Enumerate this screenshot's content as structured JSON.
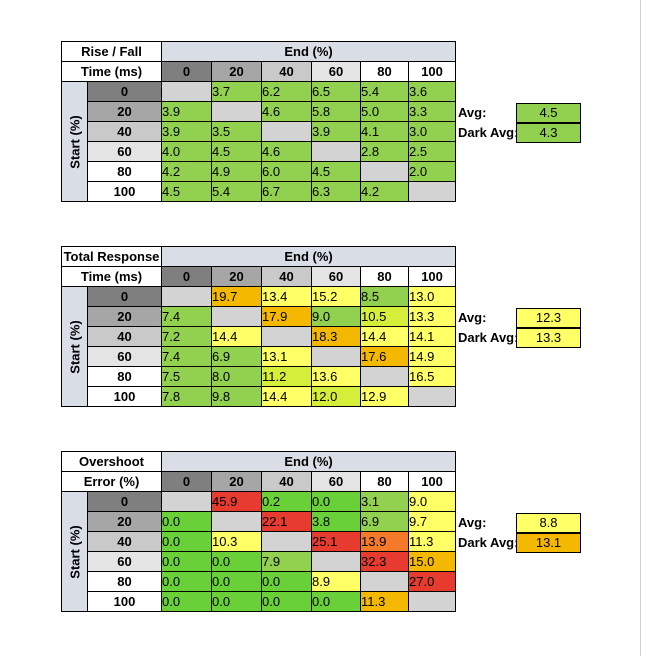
{
  "colors": {
    "green": "#6ad037",
    "lightgreen": "#92d050",
    "yellow": "#ffff66",
    "yellowgreen": "#d4ee3a",
    "orange": "#f5b800",
    "deeporange": "#f47a2a",
    "red": "#e63b2e",
    "gray": "#d3d3d3",
    "hdr_dark": "#7f7f7f",
    "hdr_mid": "#a6a6a6",
    "hdr_light": "#c9c9c9",
    "hdr_pale": "#e4e4e4",
    "hdr_white": "#ffffff"
  },
  "chart_data": [
    {
      "type": "table",
      "label_line1": "Rise / Fall",
      "label_line2": "Time (ms)",
      "end_label": "End (%)",
      "start_label": "Start (%)",
      "levels": [
        "0",
        "20",
        "40",
        "60",
        "80",
        "100"
      ],
      "rows": [
        [
          "",
          "3.7",
          "6.2",
          "6.5",
          "5.4",
          "3.6"
        ],
        [
          "3.9",
          "",
          "4.6",
          "5.8",
          "5.0",
          "3.3"
        ],
        [
          "3.9",
          "3.5",
          "",
          "3.9",
          "4.1",
          "3.0"
        ],
        [
          "4.0",
          "4.5",
          "4.6",
          "",
          "2.8",
          "2.5"
        ],
        [
          "4.2",
          "4.9",
          "6.0",
          "4.5",
          "",
          "2.0"
        ],
        [
          "4.5",
          "5.4",
          "6.7",
          "6.3",
          "4.2",
          ""
        ]
      ],
      "cell_colors": [
        [
          "gray",
          "lightgreen",
          "lightgreen",
          "lightgreen",
          "lightgreen",
          "lightgreen"
        ],
        [
          "lightgreen",
          "gray",
          "lightgreen",
          "lightgreen",
          "lightgreen",
          "lightgreen"
        ],
        [
          "lightgreen",
          "lightgreen",
          "gray",
          "lightgreen",
          "lightgreen",
          "lightgreen"
        ],
        [
          "lightgreen",
          "lightgreen",
          "lightgreen",
          "gray",
          "lightgreen",
          "lightgreen"
        ],
        [
          "lightgreen",
          "lightgreen",
          "lightgreen",
          "lightgreen",
          "gray",
          "lightgreen"
        ],
        [
          "lightgreen",
          "lightgreen",
          "lightgreen",
          "lightgreen",
          "lightgreen",
          "gray"
        ]
      ],
      "avg_label": "Avg:",
      "avg_value": "4.5",
      "avg_color": "lightgreen",
      "dark_avg_label": "Dark Avg:",
      "dark_avg_value": "4.3",
      "dark_avg_color": "lightgreen"
    },
    {
      "type": "table",
      "label_line1": "Total Response",
      "label_line2": "Time (ms)",
      "end_label": "End (%)",
      "start_label": "Start (%)",
      "levels": [
        "0",
        "20",
        "40",
        "60",
        "80",
        "100"
      ],
      "rows": [
        [
          "",
          "19.7",
          "13.4",
          "15.2",
          "8.5",
          "13.0"
        ],
        [
          "7.4",
          "",
          "17.9",
          "9.0",
          "10.5",
          "13.3"
        ],
        [
          "7.2",
          "14.4",
          "",
          "18.3",
          "14.4",
          "14.1"
        ],
        [
          "7.4",
          "6.9",
          "13.1",
          "",
          "17.6",
          "14.9"
        ],
        [
          "7.5",
          "8.0",
          "11.2",
          "13.6",
          "",
          "16.5"
        ],
        [
          "7.8",
          "9.8",
          "14.4",
          "12.0",
          "12.9",
          ""
        ]
      ],
      "cell_colors": [
        [
          "gray",
          "orange",
          "yellow",
          "yellow",
          "lightgreen",
          "yellow"
        ],
        [
          "lightgreen",
          "gray",
          "orange",
          "lightgreen",
          "yellowgreen",
          "yellow"
        ],
        [
          "lightgreen",
          "yellow",
          "gray",
          "orange",
          "yellow",
          "yellow"
        ],
        [
          "lightgreen",
          "lightgreen",
          "yellow",
          "gray",
          "orange",
          "yellow"
        ],
        [
          "lightgreen",
          "lightgreen",
          "yellowgreen",
          "yellow",
          "gray",
          "yellow"
        ],
        [
          "lightgreen",
          "lightgreen",
          "yellow",
          "yellowgreen",
          "yellow",
          "gray"
        ]
      ],
      "avg_label": "Avg:",
      "avg_value": "12.3",
      "avg_color": "yellow",
      "dark_avg_label": "Dark Avg:",
      "dark_avg_value": "13.3",
      "dark_avg_color": "yellow"
    },
    {
      "type": "table",
      "label_line1": "Overshoot",
      "label_line2": "Error (%)",
      "end_label": "End (%)",
      "start_label": "Start (%)",
      "levels": [
        "0",
        "20",
        "40",
        "60",
        "80",
        "100"
      ],
      "rows": [
        [
          "",
          "45.9",
          "0.2",
          "0.0",
          "3.1",
          "9.0"
        ],
        [
          "0.0",
          "",
          "22.1",
          "3.8",
          "6.9",
          "9.7"
        ],
        [
          "0.0",
          "10.3",
          "",
          "25.1",
          "13.9",
          "11.3"
        ],
        [
          "0.0",
          "0.0",
          "7.9",
          "",
          "32.3",
          "15.0"
        ],
        [
          "0.0",
          "0.0",
          "0.0",
          "8.9",
          "",
          "27.0"
        ],
        [
          "0.0",
          "0.0",
          "0.0",
          "0.0",
          "11.3",
          ""
        ]
      ],
      "cell_colors": [
        [
          "gray",
          "red",
          "green",
          "green",
          "lightgreen",
          "yellow"
        ],
        [
          "green",
          "gray",
          "red",
          "green",
          "lightgreen",
          "yellow"
        ],
        [
          "green",
          "yellow",
          "gray",
          "red",
          "deeporange",
          "yellow"
        ],
        [
          "green",
          "green",
          "lightgreen",
          "gray",
          "red",
          "orange"
        ],
        [
          "green",
          "green",
          "green",
          "yellow",
          "gray",
          "red"
        ],
        [
          "green",
          "green",
          "green",
          "green",
          "orange",
          "gray"
        ]
      ],
      "avg_label": "Avg:",
      "avg_value": "8.8",
      "avg_color": "yellow",
      "dark_avg_label": "Dark Avg:",
      "dark_avg_value": "13.1",
      "dark_avg_color": "orange"
    }
  ]
}
